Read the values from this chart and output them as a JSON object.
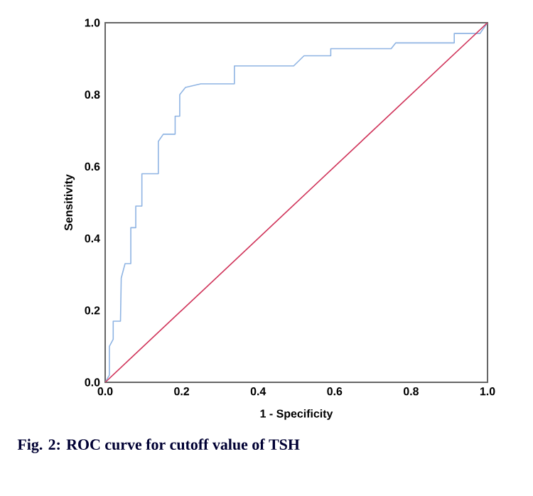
{
  "chart_data": {
    "type": "line",
    "xlabel": "1 - Specificity",
    "ylabel": "Sensitivity",
    "annotations": [
      "Fig. 2: ROC curve for cutoff value of TSH"
    ],
    "xlim": [
      0,
      1
    ],
    "ylim": [
      0,
      1
    ],
    "xticks": [
      {
        "value": 0,
        "label": "0.0"
      },
      {
        "value": 0.2,
        "label": "0.2"
      },
      {
        "value": 0.4,
        "label": "0.4"
      },
      {
        "value": 0.6,
        "label": "0.6"
      },
      {
        "value": 0.8,
        "label": "0.8"
      },
      {
        "value": 1,
        "label": "1.0"
      }
    ],
    "yticks": [
      {
        "value": 0,
        "label": "0.0"
      },
      {
        "value": 0.2,
        "label": "0.2"
      },
      {
        "value": 0.4,
        "label": "0.4"
      },
      {
        "value": 0.6,
        "label": "0.6"
      },
      {
        "value": 0.8,
        "label": "0.8"
      },
      {
        "value": 1,
        "label": "1.0"
      }
    ],
    "series": [
      {
        "color": "#8fb4e3",
        "x": [
          0,
          0.011,
          0.011,
          0.021,
          0.021,
          0.027,
          0.04,
          0.042,
          0.042,
          0.052,
          0.067,
          0.067,
          0.08,
          0.08,
          0.096,
          0.096,
          0.139,
          0.139,
          0.152,
          0.183,
          0.183,
          0.195,
          0.195,
          0.21,
          0.25,
          0.338,
          0.338,
          0.493,
          0.52,
          0.59,
          0.59,
          0.748,
          0.76,
          0.913,
          0.913,
          0.98,
          1
        ],
        "values": [
          0,
          0.02,
          0.1,
          0.12,
          0.17,
          0.17,
          0.17,
          0.29,
          0.29,
          0.33,
          0.33,
          0.43,
          0.43,
          0.49,
          0.49,
          0.58,
          0.58,
          0.67,
          0.69,
          0.69,
          0.74,
          0.74,
          0.8,
          0.82,
          0.83,
          0.83,
          0.88,
          0.88,
          0.908,
          0.908,
          0.928,
          0.928,
          0.944,
          0.944,
          0.97,
          0.97,
          1
        ]
      },
      {
        "color": "#d0345a",
        "x": [
          0,
          1
        ],
        "values": [
          0,
          1
        ]
      }
    ],
    "grid": false,
    "marker": "none",
    "line_style": "solid"
  }
}
